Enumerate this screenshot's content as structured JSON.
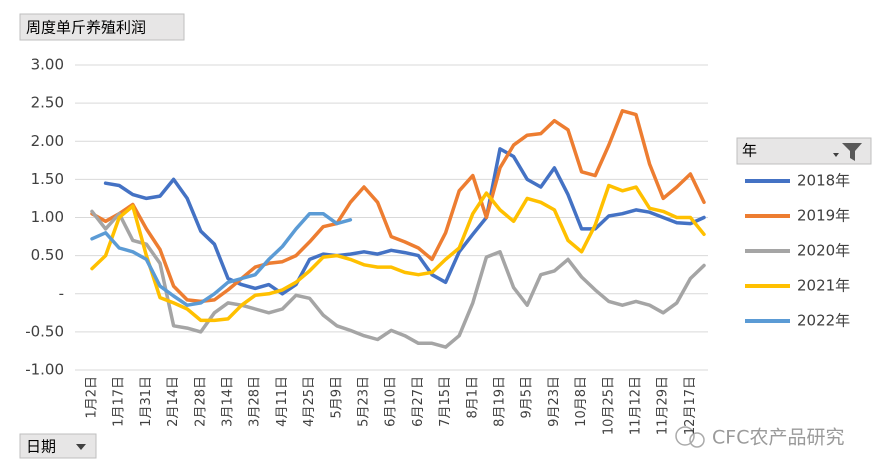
{
  "chart_data": {
    "type": "line",
    "title": "周度单斤养殖利润",
    "x_field": "日期",
    "legend_title": "年",
    "legend": "right",
    "grid": true,
    "watermark": "CFC农产品研究",
    "categories": [
      "1月2日",
      null,
      "1月17日",
      null,
      "1月31日",
      null,
      "2月14日",
      null,
      "2月28日",
      null,
      "3月14日",
      null,
      "3月28日",
      null,
      "4月11日",
      null,
      "4月25日",
      null,
      "5月9日",
      null,
      "5月23日",
      null,
      "6月10日",
      null,
      "6月27日",
      null,
      "7月15日",
      null,
      "8月1日",
      null,
      "8月19日",
      null,
      "9月5日",
      null,
      "9月23日",
      null,
      "10月8日",
      null,
      "10月25日",
      null,
      "11月12日",
      null,
      "11月29日",
      null,
      "12月17日",
      null
    ],
    "ylim": [
      -1,
      3
    ],
    "yticks": [
      {
        "value": -1,
        "label": "-1.00"
      },
      {
        "value": -0.5,
        "label": "-0.50"
      },
      {
        "value": 0,
        "label": "-"
      },
      {
        "value": 0.5,
        "label": "0.50"
      },
      {
        "value": 1,
        "label": "1.00"
      },
      {
        "value": 1.5,
        "label": "1.50"
      },
      {
        "value": 2,
        "label": "2.00"
      },
      {
        "value": 2.5,
        "label": "2.50"
      },
      {
        "value": 3,
        "label": "3.00"
      }
    ],
    "series": [
      {
        "name": "2018年",
        "color": "#4472c4",
        "values": [
          null,
          1.45,
          1.42,
          1.3,
          1.25,
          1.28,
          1.5,
          1.25,
          0.82,
          0.65,
          0.2,
          0.12,
          0.07,
          0.12,
          0.0,
          0.12,
          0.45,
          0.52,
          0.5,
          0.52,
          0.55,
          0.52,
          0.57,
          0.54,
          0.5,
          0.25,
          0.15,
          0.55,
          0.78,
          1.0,
          1.9,
          1.8,
          1.5,
          1.4,
          1.65,
          1.3,
          0.85,
          0.85,
          1.02,
          1.05,
          1.1,
          1.07,
          1.0,
          0.93,
          0.92,
          1.0
        ]
      },
      {
        "name": "2019年",
        "color": "#ed7d31",
        "values": [
          1.05,
          0.95,
          1.05,
          1.17,
          0.85,
          0.58,
          0.1,
          -0.08,
          -0.1,
          -0.08,
          0.05,
          0.2,
          0.35,
          0.4,
          0.42,
          0.5,
          0.68,
          0.88,
          0.92,
          1.2,
          1.4,
          1.2,
          0.75,
          0.68,
          0.6,
          0.45,
          0.8,
          1.35,
          1.55,
          1.0,
          1.65,
          1.95,
          2.08,
          2.1,
          2.27,
          2.15,
          1.6,
          1.55,
          1.95,
          2.4,
          2.35,
          1.7,
          1.25,
          1.4,
          1.57,
          1.2
        ]
      },
      {
        "name": "2020年",
        "color": "#a5a5a5",
        "values": [
          1.08,
          0.85,
          1.05,
          0.7,
          0.65,
          0.4,
          -0.42,
          -0.45,
          -0.5,
          -0.25,
          -0.12,
          -0.15,
          -0.2,
          -0.25,
          -0.2,
          -0.02,
          -0.06,
          -0.28,
          -0.42,
          -0.48,
          -0.55,
          -0.6,
          -0.48,
          -0.55,
          -0.65,
          -0.65,
          -0.7,
          -0.55,
          -0.12,
          0.48,
          0.55,
          0.08,
          -0.15,
          0.25,
          0.3,
          0.45,
          0.22,
          0.05,
          -0.1,
          -0.15,
          -0.1,
          -0.15,
          -0.25,
          -0.12,
          0.2,
          0.37
        ]
      },
      {
        "name": "2021年",
        "color": "#ffc000",
        "values": [
          0.33,
          0.5,
          1.0,
          1.15,
          0.5,
          -0.05,
          -0.12,
          -0.2,
          -0.35,
          -0.35,
          -0.33,
          -0.15,
          -0.02,
          0.0,
          0.05,
          0.15,
          0.3,
          0.48,
          0.5,
          0.45,
          0.38,
          0.35,
          0.35,
          0.28,
          0.25,
          0.28,
          0.45,
          0.6,
          1.05,
          1.32,
          1.1,
          0.95,
          1.25,
          1.2,
          1.1,
          0.7,
          0.55,
          0.9,
          1.42,
          1.35,
          1.4,
          1.12,
          1.08,
          1.0,
          1.0,
          0.78
        ]
      },
      {
        "name": "2022年",
        "color": "#5b9bd5",
        "values": [
          0.72,
          0.8,
          0.6,
          0.55,
          0.45,
          0.1,
          -0.03,
          -0.15,
          -0.12,
          0.0,
          0.15,
          0.2,
          0.25,
          0.45,
          0.62,
          0.85,
          1.05,
          1.05,
          0.92,
          0.97,
          null,
          null,
          null,
          null,
          null,
          null,
          null,
          null,
          null,
          null,
          null,
          null,
          null,
          null,
          null,
          null,
          null,
          null,
          null,
          null,
          null,
          null,
          null,
          null,
          null,
          null
        ]
      }
    ]
  }
}
